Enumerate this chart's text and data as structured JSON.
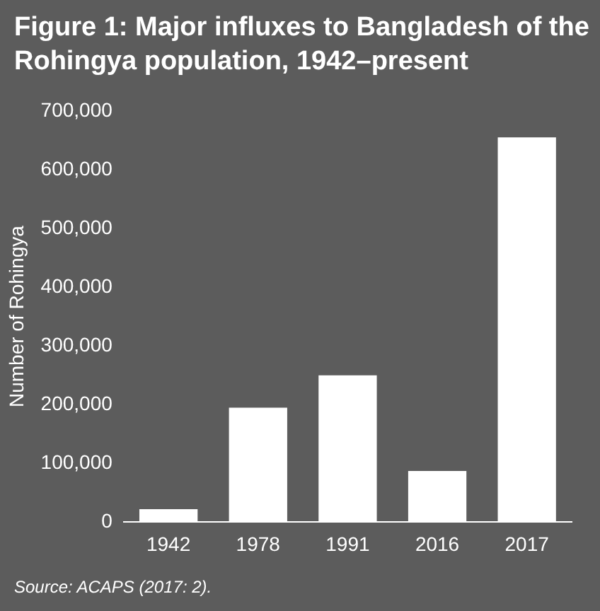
{
  "chart_data": {
    "type": "bar",
    "title": "Figure 1: Major influxes to Bangladesh of the Rohingya population, 1942–present",
    "ylabel": "Number of Rohingya",
    "categories": [
      "1942",
      "1978",
      "1991",
      "2016",
      "2017"
    ],
    "values": [
      22000,
      195000,
      250000,
      87000,
      655000
    ],
    "color": "#ffffff",
    "ylim": [
      0,
      700000
    ],
    "yticks": [
      {
        "value": 0,
        "label": "0"
      },
      {
        "value": 100000,
        "label": "100,000"
      },
      {
        "value": 200000,
        "label": "200,000"
      },
      {
        "value": 300000,
        "label": "300,000"
      },
      {
        "value": 400000,
        "label": "400,000"
      },
      {
        "value": 500000,
        "label": "500,000"
      },
      {
        "value": 600000,
        "label": "600,000"
      },
      {
        "value": 700000,
        "label": "700,000"
      }
    ],
    "grid": false,
    "annotations": [
      "Source: ACAPS (2017: 2)."
    ]
  }
}
